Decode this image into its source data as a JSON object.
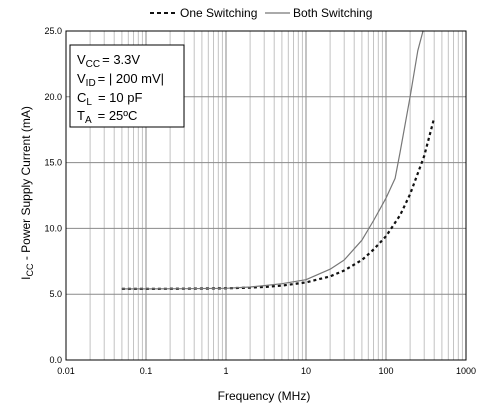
{
  "chart_data": {
    "type": "line",
    "title": "",
    "xlabel": "Frequency (MHz)",
    "ylabel": {
      "main": "I",
      "sub": "CC",
      "rest": " - Power Supply Current (mA)"
    },
    "x_scale": "log",
    "xlim": [
      0.01,
      1000
    ],
    "ylim": [
      0,
      25
    ],
    "x_ticks": [
      {
        "value": 0.01,
        "label": "0.01"
      },
      {
        "value": 0.1,
        "label": "0.1"
      },
      {
        "value": 1,
        "label": "1"
      },
      {
        "value": 10,
        "label": "10"
      },
      {
        "value": 100,
        "label": "100"
      },
      {
        "value": 1000,
        "label": "1000"
      }
    ],
    "y_ticks": [
      {
        "value": 0,
        "label": "0.0"
      },
      {
        "value": 5,
        "label": "5.0"
      },
      {
        "value": 10,
        "label": "10.0"
      },
      {
        "value": 15,
        "label": "15.0"
      },
      {
        "value": 20,
        "label": "20.0"
      },
      {
        "value": 25,
        "label": "25.0"
      }
    ],
    "grid": true,
    "legend_position": "top",
    "series": [
      {
        "name": "One Switching",
        "style": "dashed",
        "color": "#111111",
        "points": [
          [
            0.05,
            5.4
          ],
          [
            0.1,
            5.4
          ],
          [
            0.3,
            5.42
          ],
          [
            1,
            5.45
          ],
          [
            2,
            5.5
          ],
          [
            3,
            5.55
          ],
          [
            5,
            5.65
          ],
          [
            10,
            5.9
          ],
          [
            20,
            6.35
          ],
          [
            30,
            6.8
          ],
          [
            50,
            7.6
          ],
          [
            70,
            8.4
          ],
          [
            100,
            9.4
          ],
          [
            150,
            11.0
          ],
          [
            200,
            12.6
          ],
          [
            300,
            15.5
          ],
          [
            400,
            18.4
          ]
        ]
      },
      {
        "name": "Both Switching",
        "style": "solid",
        "color": "#777777",
        "points": [
          [
            0.05,
            5.4
          ],
          [
            0.1,
            5.4
          ],
          [
            0.3,
            5.42
          ],
          [
            1,
            5.45
          ],
          [
            2,
            5.55
          ],
          [
            3,
            5.65
          ],
          [
            5,
            5.8
          ],
          [
            10,
            6.1
          ],
          [
            20,
            6.9
          ],
          [
            30,
            7.6
          ],
          [
            50,
            9.1
          ],
          [
            70,
            10.6
          ],
          [
            100,
            12.3
          ],
          [
            130,
            13.8
          ],
          [
            150,
            15.8
          ],
          [
            200,
            20.0
          ],
          [
            250,
            23.5
          ],
          [
            290,
            25.0
          ]
        ]
      }
    ],
    "conditions": [
      {
        "main": "V",
        "sub": "CC",
        "value": "= 3.3V"
      },
      {
        "main": "V",
        "sub": "ID",
        "value": "= | 200 mV|"
      },
      {
        "main": "C",
        "sub": "L",
        "value": "= 10 pF"
      },
      {
        "main": "T",
        "sub": "A",
        "value": "= 25ºC"
      }
    ]
  }
}
